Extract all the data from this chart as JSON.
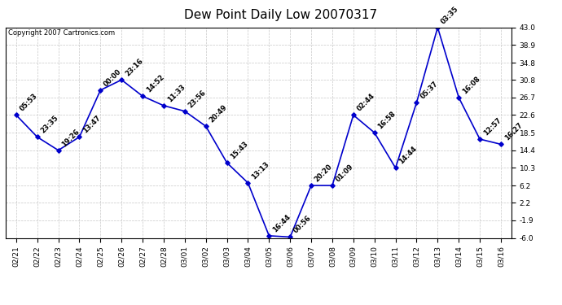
{
  "title": "Dew Point Daily Low 20070317",
  "copyright": "Copyright 2007 Cartronics.com",
  "x_labels": [
    "02/21",
    "02/22",
    "02/23",
    "02/24",
    "02/25",
    "02/26",
    "02/27",
    "02/28",
    "03/01",
    "03/02",
    "03/03",
    "03/04",
    "03/05",
    "03/06",
    "03/07",
    "03/08",
    "03/09",
    "03/10",
    "03/11",
    "03/12",
    "03/13",
    "03/14",
    "03/15",
    "03/16"
  ],
  "y_values": [
    22.6,
    17.5,
    14.4,
    17.5,
    28.4,
    30.8,
    27.0,
    24.8,
    23.5,
    20.0,
    11.5,
    6.8,
    -5.5,
    -5.8,
    6.2,
    6.2,
    22.6,
    18.5,
    10.3,
    25.5,
    43.0,
    26.7,
    17.0,
    15.8
  ],
  "point_labels": [
    "05:53",
    "23:35",
    "19:26",
    "13:47",
    "00:00",
    "23:16",
    "14:52",
    "11:33",
    "23:56",
    "20:49",
    "15:43",
    "13:13",
    "16:44",
    "00:56",
    "20:20",
    "01:09",
    "02:44",
    "16:58",
    "14:44",
    "05:37",
    "03:35",
    "16:08",
    "12:57",
    "16:27"
  ],
  "line_color": "#0000CC",
  "marker_color": "#0000CC",
  "bg_color": "#FFFFFF",
  "plot_bg_color": "#FFFFFF",
  "grid_color": "#C8C8C8",
  "title_fontsize": 11,
  "label_fontsize": 6.0,
  "tick_fontsize": 6.5,
  "copyright_fontsize": 6.0,
  "ylim": [
    -6.0,
    43.0
  ],
  "yticks": [
    -6.0,
    -1.9,
    2.2,
    6.2,
    10.3,
    14.4,
    18.5,
    22.6,
    26.7,
    30.8,
    34.8,
    38.9,
    43.0
  ]
}
